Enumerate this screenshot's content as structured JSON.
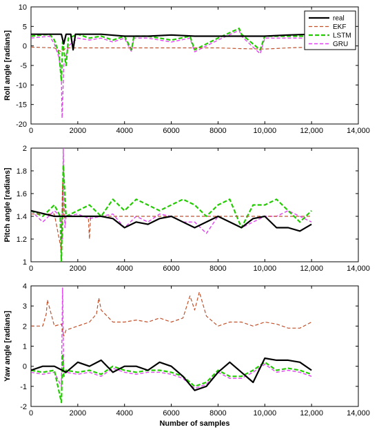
{
  "colors": {
    "real": "#000000",
    "ekf": "#c0502a",
    "lstm": "#22cc00",
    "gru": "#e040f0",
    "background": "#ffffff"
  },
  "legend": {
    "placement": "top-right of first panel",
    "entries": [
      {
        "name": "real",
        "style": "solid"
      },
      {
        "name": "EKF",
        "style": "dashed"
      },
      {
        "name": "LSTM",
        "style": "dashed"
      },
      {
        "name": "GRU",
        "style": "dashed"
      }
    ]
  },
  "chart_data": [
    {
      "type": "line",
      "title": "",
      "xlabel": "",
      "ylabel": "Roll angle [radians]",
      "xlim": [
        0,
        14000
      ],
      "ylim": [
        -20,
        10
      ],
      "xticks": [
        "0",
        "2000",
        "4000",
        "6000",
        "8000",
        "10,000",
        "12,000",
        "14,000"
      ],
      "yticks": [
        "10",
        "5",
        "0",
        "-5",
        "-10",
        "-15",
        "-20"
      ],
      "grid": false,
      "series": [
        {
          "name": "real",
          "x": [
            0,
            1000,
            1300,
            1400,
            1500,
            1700,
            1800,
            1900,
            2000,
            3000,
            4000,
            5000,
            6000,
            7000,
            8000,
            9000,
            10000,
            11000,
            12000
          ],
          "y": [
            3.0,
            3.0,
            3.0,
            0.5,
            3.0,
            3.0,
            -1.0,
            3.0,
            3.0,
            3.0,
            2.5,
            2.5,
            2.8,
            2.5,
            2.5,
            2.5,
            2.5,
            2.8,
            3.0
          ]
        },
        {
          "name": "EKF",
          "x": [
            0,
            1000,
            1300,
            1500,
            2000,
            3000,
            4000,
            5000,
            6000,
            7000,
            8000,
            9000,
            10000,
            11000,
            12000
          ],
          "y": [
            -0.3,
            -0.5,
            -1.5,
            -0.5,
            -0.5,
            -0.5,
            -0.5,
            -0.5,
            -0.5,
            -0.5,
            -0.5,
            -0.7,
            -0.8,
            -0.5,
            -0.3
          ]
        },
        {
          "name": "LSTM",
          "x": [
            0,
            800,
            1000,
            1200,
            1300,
            1350,
            1500,
            1600,
            2000,
            2500,
            3000,
            3500,
            4000,
            4300,
            4400,
            5000,
            6000,
            6800,
            7000,
            8000,
            8900,
            9000,
            9800,
            10000,
            11000,
            11800,
            12000
          ],
          "y": [
            2.5,
            3.0,
            1.5,
            -2.0,
            -9.0,
            1.0,
            -5.0,
            2.0,
            3.0,
            2.0,
            2.5,
            1.5,
            2.5,
            -1.0,
            2.5,
            2.5,
            1.5,
            2.5,
            -1.0,
            2.0,
            4.5,
            3.0,
            -1.0,
            2.5,
            2.5,
            2.5,
            2.5
          ]
        },
        {
          "name": "GRU",
          "x": [
            0,
            800,
            1000,
            1200,
            1300,
            1330,
            1400,
            1600,
            2000,
            2500,
            3000,
            3500,
            4000,
            4300,
            4400,
            5000,
            6000,
            6800,
            7000,
            8000,
            8900,
            9000,
            9800,
            10000,
            11000,
            11800,
            12000
          ],
          "y": [
            2.0,
            2.5,
            0.5,
            -3.0,
            -8.0,
            -18.5,
            -5.0,
            0.0,
            2.0,
            1.5,
            2.0,
            1.0,
            2.0,
            -1.5,
            2.0,
            2.0,
            1.0,
            2.0,
            -1.5,
            1.5,
            4.0,
            2.5,
            -2.0,
            2.0,
            2.0,
            2.0,
            2.0
          ]
        }
      ]
    },
    {
      "type": "line",
      "title": "",
      "xlabel": "",
      "ylabel": "Pitch angle [radians]",
      "xlim": [
        0,
        14000
      ],
      "ylim": [
        1,
        2
      ],
      "xticks": [
        "0",
        "2000",
        "4000",
        "6000",
        "8000",
        "10,000",
        "12,000",
        "14,000"
      ],
      "yticks": [
        "2",
        "1.8",
        "1.6",
        "1.4",
        "1.2",
        "1"
      ],
      "grid": false,
      "series": [
        {
          "name": "real",
          "x": [
            0,
            1000,
            2000,
            3000,
            3500,
            4000,
            4500,
            5000,
            5500,
            6000,
            6500,
            7000,
            7500,
            8000,
            8500,
            9000,
            9500,
            10000,
            10500,
            11000,
            11500,
            12000
          ],
          "y": [
            1.45,
            1.4,
            1.4,
            1.4,
            1.38,
            1.3,
            1.35,
            1.33,
            1.38,
            1.4,
            1.35,
            1.3,
            1.35,
            1.4,
            1.35,
            1.3,
            1.38,
            1.4,
            1.3,
            1.3,
            1.27,
            1.33
          ]
        },
        {
          "name": "EKF",
          "x": [
            0,
            1000,
            1300,
            1350,
            1400,
            1500,
            2000,
            2450,
            2500,
            2550,
            3000,
            4000,
            5000,
            6000,
            7000,
            8000,
            9000,
            10000,
            11000,
            12000
          ],
          "y": [
            1.42,
            1.42,
            1.1,
            1.7,
            1.38,
            1.4,
            1.4,
            1.4,
            1.2,
            1.4,
            1.4,
            1.4,
            1.4,
            1.4,
            1.4,
            1.4,
            1.4,
            1.4,
            1.4,
            1.4
          ]
        },
        {
          "name": "LSTM",
          "x": [
            0,
            500,
            1000,
            1250,
            1300,
            1380,
            1500,
            2000,
            2500,
            3000,
            3500,
            4000,
            4500,
            5000,
            5500,
            6000,
            6500,
            7000,
            7500,
            8000,
            8500,
            9000,
            9500,
            10000,
            10500,
            11000,
            11500,
            12000
          ],
          "y": [
            1.45,
            1.4,
            1.5,
            1.4,
            1.0,
            1.85,
            1.4,
            1.45,
            1.5,
            1.4,
            1.55,
            1.45,
            1.55,
            1.5,
            1.45,
            1.5,
            1.55,
            1.5,
            1.4,
            1.5,
            1.55,
            1.3,
            1.5,
            1.5,
            1.55,
            1.45,
            1.35,
            1.45
          ]
        },
        {
          "name": "GRU",
          "x": [
            0,
            500,
            1000,
            1250,
            1350,
            1380,
            1450,
            1500,
            2000,
            2500,
            3000,
            3500,
            4000,
            4500,
            5000,
            5500,
            6000,
            6500,
            7000,
            7500,
            8000,
            8500,
            9000,
            9500,
            10000,
            10500,
            11000,
            11500,
            12000
          ],
          "y": [
            1.45,
            1.35,
            1.45,
            1.4,
            1.2,
            2.0,
            1.3,
            1.4,
            1.42,
            1.38,
            1.4,
            1.42,
            1.3,
            1.4,
            1.35,
            1.42,
            1.4,
            1.35,
            1.35,
            1.25,
            1.4,
            1.35,
            1.3,
            1.35,
            1.4,
            1.4,
            1.45,
            1.4,
            1.35
          ]
        }
      ]
    },
    {
      "type": "line",
      "title": "",
      "xlabel": "Number of samples",
      "ylabel": "Yaw angle [radians]",
      "xlim": [
        0,
        14000
      ],
      "ylim": [
        -2,
        4
      ],
      "xticks": [
        "0",
        "2000",
        "4000",
        "6000",
        "8000",
        "10,000",
        "12,000",
        "14,000"
      ],
      "yticks": [
        "4",
        "3",
        "2",
        "1",
        "0",
        "-1",
        "-2"
      ],
      "grid": false,
      "series": [
        {
          "name": "real",
          "x": [
            0,
            500,
            1000,
            1500,
            2000,
            2500,
            3000,
            3500,
            4000,
            4500,
            5000,
            5500,
            6000,
            6500,
            7000,
            7500,
            8000,
            8500,
            9000,
            9500,
            10000,
            10500,
            11000,
            11500,
            12000
          ],
          "y": [
            -0.2,
            0.0,
            0.0,
            -0.3,
            0.2,
            0.0,
            0.3,
            -0.3,
            0.0,
            0.0,
            -0.2,
            0.2,
            0.0,
            -0.5,
            -1.2,
            -1.0,
            -0.3,
            0.2,
            -0.3,
            -0.8,
            0.4,
            0.3,
            0.3,
            0.2,
            -0.2
          ]
        },
        {
          "name": "EKF",
          "x": [
            0,
            500,
            650,
            700,
            1000,
            1300,
            1400,
            1500,
            2000,
            2500,
            2800,
            2900,
            3000,
            3500,
            4000,
            4500,
            5000,
            5500,
            6000,
            6500,
            6800,
            7000,
            7200,
            7500,
            8000,
            8500,
            9000,
            9500,
            10000,
            10500,
            11000,
            11500,
            12000
          ],
          "y": [
            2.0,
            2.0,
            2.6,
            3.3,
            2.0,
            2.1,
            1.5,
            1.8,
            2.0,
            2.2,
            2.6,
            3.4,
            2.8,
            2.2,
            2.2,
            2.3,
            2.2,
            2.4,
            2.2,
            2.4,
            3.5,
            2.8,
            3.7,
            2.5,
            2.0,
            2.2,
            2.2,
            2.0,
            2.2,
            2.1,
            1.9,
            1.9,
            2.2
          ]
        },
        {
          "name": "LSTM",
          "x": [
            0,
            500,
            1000,
            1300,
            1350,
            1400,
            1500,
            2000,
            2500,
            3000,
            3500,
            4000,
            4500,
            5000,
            5500,
            6000,
            6500,
            7000,
            7500,
            8000,
            8500,
            9000,
            9500,
            10000,
            10500,
            11000,
            11500,
            12000
          ],
          "y": [
            -0.2,
            -0.3,
            -0.2,
            -1.8,
            0.6,
            -0.5,
            -0.2,
            -0.3,
            -0.2,
            -0.4,
            0.0,
            -0.2,
            -0.3,
            -0.2,
            -0.2,
            -0.3,
            -0.5,
            -1.0,
            -0.8,
            -0.2,
            -0.5,
            -0.5,
            -0.2,
            0.2,
            -0.2,
            -0.1,
            -0.2,
            -0.4
          ]
        },
        {
          "name": "GRU",
          "x": [
            0,
            500,
            1000,
            1300,
            1350,
            1400,
            1500,
            2000,
            2500,
            3000,
            3500,
            4000,
            4500,
            5000,
            5500,
            6000,
            6500,
            7000,
            7500,
            8000,
            8500,
            9000,
            9500,
            10000,
            10500,
            11000,
            11500,
            12000
          ],
          "y": [
            -0.3,
            -0.4,
            -0.3,
            -1.0,
            3.9,
            -0.3,
            -0.3,
            -0.4,
            -0.3,
            -0.5,
            -0.1,
            -0.3,
            -0.4,
            -0.3,
            -0.3,
            -0.4,
            -0.6,
            -1.1,
            -0.9,
            -0.3,
            -0.6,
            -0.6,
            -0.3,
            0.1,
            -0.3,
            -0.2,
            -0.3,
            -0.5
          ]
        }
      ]
    }
  ]
}
